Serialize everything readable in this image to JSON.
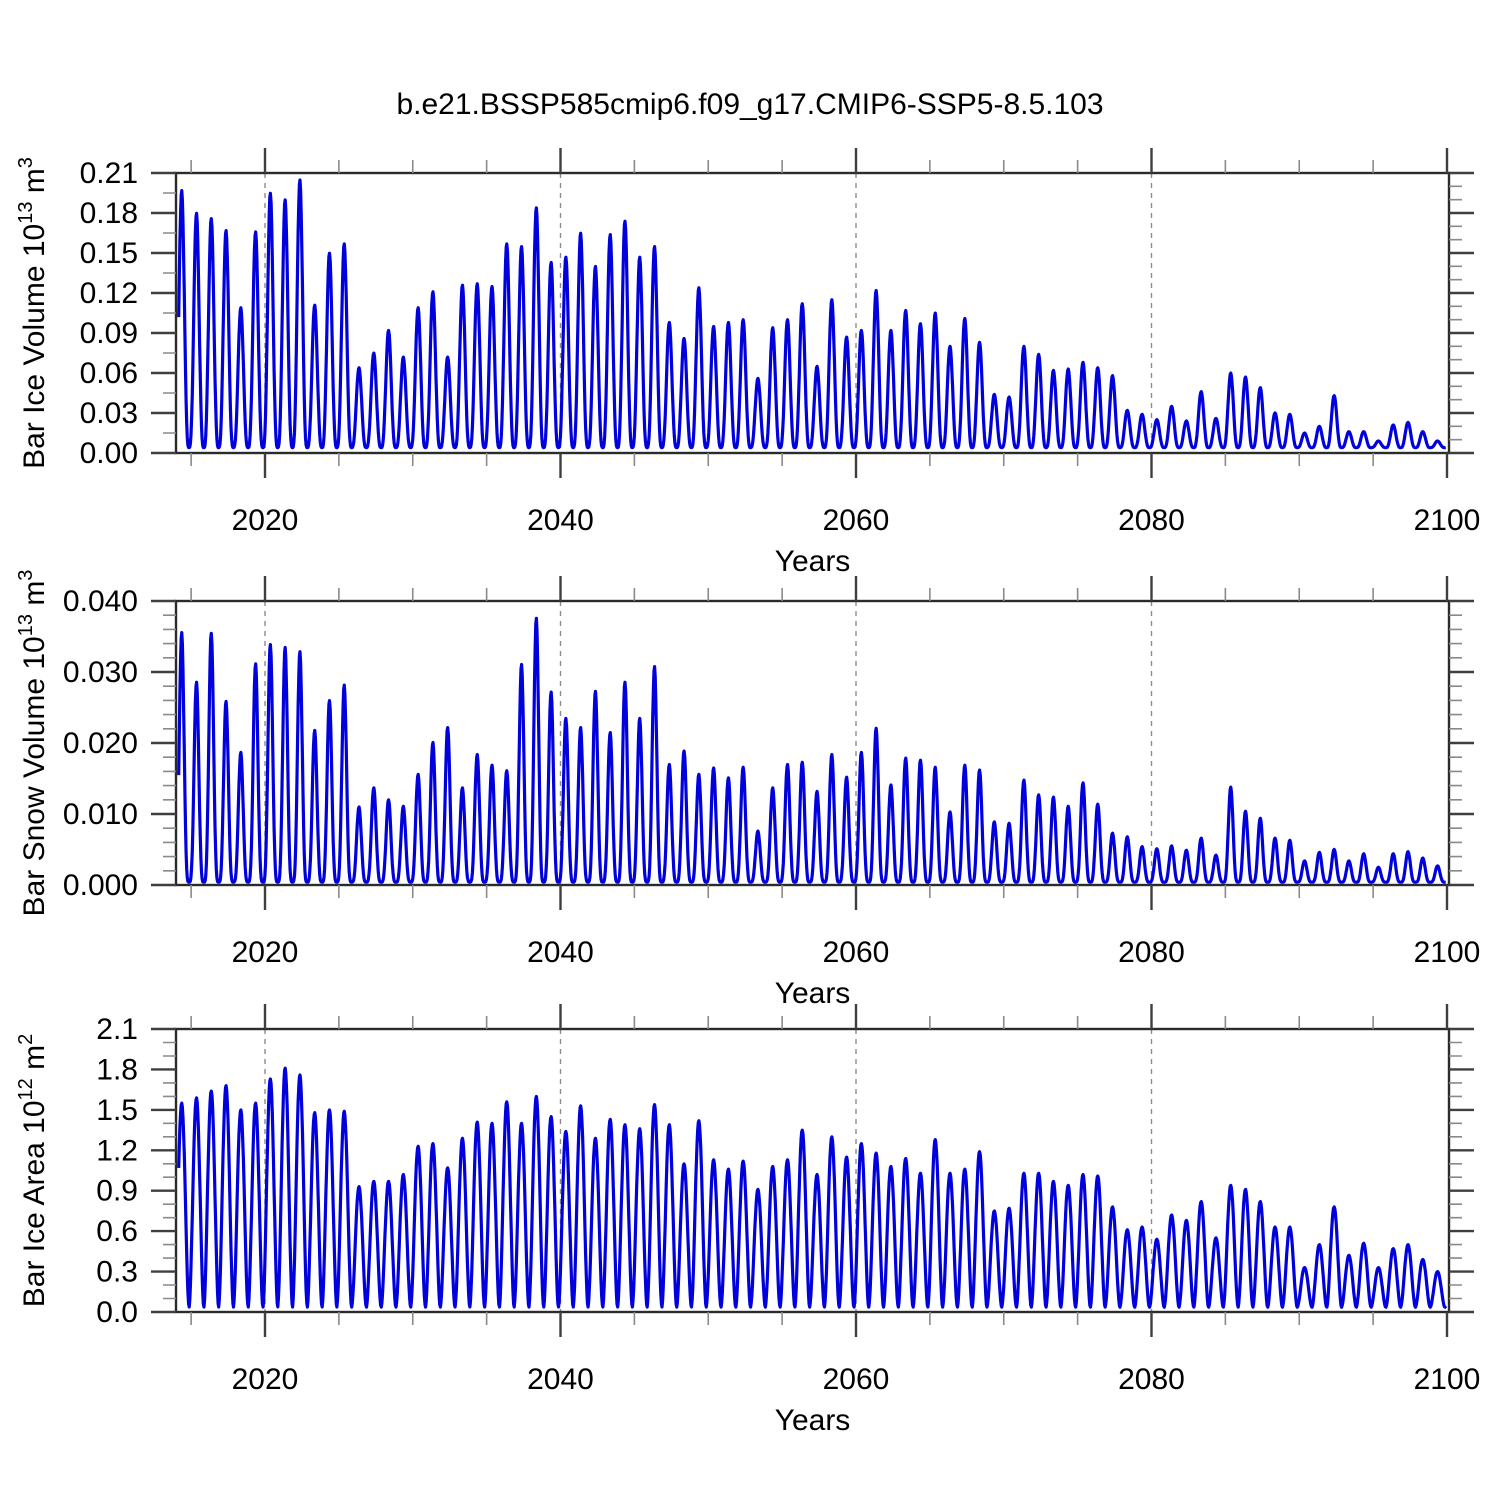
{
  "title": "b.e21.BSSP585cmip6.f09_g17.CMIP6-SSP5-8.5.103",
  "colors": {
    "series": "#0101dd",
    "frame": "#2b2b2b",
    "major_tick": "#3f3f3f",
    "minor_tick": "#8a8a8a",
    "gridline": "#8c8c8c",
    "text": "#000000"
  },
  "chart_data": [
    {
      "type": "line",
      "panel": "bar_ice_volume",
      "ylabel": "Bar Ice Volume 10^13 m^3",
      "ylabel_parts": {
        "prefix": "Bar Ice Volume 10",
        "sup1": "13",
        "mid": " m",
        "sup2": "3"
      },
      "xlabel": "Years",
      "xlim": [
        2014,
        2100.15
      ],
      "ylim": [
        0,
        0.21
      ],
      "ytick_labels": [
        "0.00",
        "0.03",
        "0.06",
        "0.09",
        "0.12",
        "0.15",
        "0.18",
        "0.21"
      ],
      "xtick_labels": [
        "2020",
        "2040",
        "2060",
        "2080",
        "2100"
      ],
      "xticks": [
        2020,
        2040,
        2060,
        2080,
        2100
      ],
      "grid_years": [
        2020,
        2040,
        2060,
        2080
      ],
      "seasonal_cycle": {
        "years": [
          2014,
          2015,
          2016,
          2017,
          2018,
          2019,
          2020,
          2021,
          2022,
          2023,
          2024,
          2025,
          2026,
          2027,
          2028,
          2029,
          2030,
          2031,
          2032,
          2033,
          2034,
          2035,
          2036,
          2037,
          2038,
          2039,
          2040,
          2041,
          2042,
          2043,
          2044,
          2045,
          2046,
          2047,
          2048,
          2049,
          2050,
          2051,
          2052,
          2053,
          2054,
          2055,
          2056,
          2057,
          2058,
          2059,
          2060,
          2061,
          2062,
          2063,
          2064,
          2065,
          2066,
          2067,
          2068,
          2069,
          2070,
          2071,
          2072,
          2073,
          2074,
          2075,
          2076,
          2077,
          2078,
          2079,
          2080,
          2081,
          2082,
          2083,
          2084,
          2085,
          2086,
          2087,
          2088,
          2089,
          2090,
          2091,
          2092,
          2093,
          2094,
          2095,
          2096,
          2097,
          2098,
          2099
        ],
        "annual_max": [
          0.197,
          0.18,
          0.176,
          0.167,
          0.109,
          0.166,
          0.195,
          0.19,
          0.205,
          0.111,
          0.15,
          0.157,
          0.064,
          0.075,
          0.092,
          0.072,
          0.109,
          0.121,
          0.072,
          0.126,
          0.127,
          0.125,
          0.157,
          0.155,
          0.184,
          0.143,
          0.147,
          0.165,
          0.14,
          0.164,
          0.174,
          0.147,
          0.155,
          0.098,
          0.086,
          0.124,
          0.095,
          0.098,
          0.1,
          0.056,
          0.094,
          0.1,
          0.112,
          0.065,
          0.115,
          0.087,
          0.092,
          0.122,
          0.092,
          0.107,
          0.097,
          0.105,
          0.08,
          0.101,
          0.083,
          0.044,
          0.042,
          0.08,
          0.074,
          0.062,
          0.063,
          0.068,
          0.064,
          0.058,
          0.032,
          0.029,
          0.025,
          0.035,
          0.024,
          0.046,
          0.026,
          0.06,
          0.057,
          0.049,
          0.03,
          0.029,
          0.015,
          0.02,
          0.043,
          0.016,
          0.016,
          0.009,
          0.021,
          0.023,
          0.016,
          0.009
        ],
        "annual_min": 0.004
      }
    },
    {
      "type": "line",
      "panel": "bar_snow_volume",
      "ylabel": "Bar Snow Volume 10^13 m^3",
      "ylabel_parts": {
        "prefix": "Bar Snow Volume 10",
        "sup1": "13",
        "mid": " m",
        "sup2": "3"
      },
      "xlabel": "Years",
      "xlim": [
        2014,
        2100.15
      ],
      "ylim": [
        0,
        0.04
      ],
      "ytick_labels": [
        "0.000",
        "0.010",
        "0.020",
        "0.030",
        "0.040"
      ],
      "xtick_labels": [
        "2020",
        "2040",
        "2060",
        "2080",
        "2100"
      ],
      "xticks": [
        2020,
        2040,
        2060,
        2080,
        2100
      ],
      "grid_years": [
        2020,
        2040,
        2060,
        2080
      ],
      "seasonal_cycle": {
        "years": [
          2014,
          2015,
          2016,
          2017,
          2018,
          2019,
          2020,
          2021,
          2022,
          2023,
          2024,
          2025,
          2026,
          2027,
          2028,
          2029,
          2030,
          2031,
          2032,
          2033,
          2034,
          2035,
          2036,
          2037,
          2038,
          2039,
          2040,
          2041,
          2042,
          2043,
          2044,
          2045,
          2046,
          2047,
          2048,
          2049,
          2050,
          2051,
          2052,
          2053,
          2054,
          2055,
          2056,
          2057,
          2058,
          2059,
          2060,
          2061,
          2062,
          2063,
          2064,
          2065,
          2066,
          2067,
          2068,
          2069,
          2070,
          2071,
          2072,
          2073,
          2074,
          2075,
          2076,
          2077,
          2078,
          2079,
          2080,
          2081,
          2082,
          2083,
          2084,
          2085,
          2086,
          2087,
          2088,
          2089,
          2090,
          2091,
          2092,
          2093,
          2094,
          2095,
          2096,
          2097,
          2098,
          2099
        ],
        "annual_max": [
          0.0356,
          0.0286,
          0.0355,
          0.0259,
          0.0187,
          0.0312,
          0.0339,
          0.0335,
          0.0329,
          0.0218,
          0.026,
          0.0282,
          0.011,
          0.0137,
          0.012,
          0.0111,
          0.0156,
          0.0201,
          0.0222,
          0.0137,
          0.0184,
          0.0169,
          0.0161,
          0.0311,
          0.0376,
          0.0272,
          0.0235,
          0.0222,
          0.0273,
          0.0215,
          0.0286,
          0.0235,
          0.0308,
          0.017,
          0.0189,
          0.0156,
          0.0165,
          0.0151,
          0.0166,
          0.0076,
          0.0137,
          0.017,
          0.0173,
          0.0132,
          0.0184,
          0.0152,
          0.0187,
          0.0221,
          0.0141,
          0.0179,
          0.0176,
          0.0166,
          0.0103,
          0.0169,
          0.0162,
          0.0089,
          0.0087,
          0.0148,
          0.0127,
          0.0124,
          0.0111,
          0.0144,
          0.0114,
          0.0073,
          0.0068,
          0.0054,
          0.0051,
          0.0055,
          0.0049,
          0.0066,
          0.0042,
          0.0138,
          0.0104,
          0.0094,
          0.0066,
          0.0063,
          0.0034,
          0.0046,
          0.005,
          0.0034,
          0.0044,
          0.0025,
          0.0044,
          0.0047,
          0.0038,
          0.0027
        ],
        "annual_min": 0.0004
      }
    },
    {
      "type": "line",
      "panel": "bar_ice_area",
      "ylabel": "Bar Ice Area 10^12 m^2",
      "ylabel_parts": {
        "prefix": "Bar Ice Area 10",
        "sup1": "12",
        "mid": " m",
        "sup2": "2"
      },
      "xlabel": "Years",
      "xlim": [
        2014,
        2100.15
      ],
      "ylim": [
        0,
        2.1
      ],
      "ytick_labels": [
        "0.0",
        "0.3",
        "0.6",
        "0.9",
        "1.2",
        "1.5",
        "1.8",
        "2.1"
      ],
      "xtick_labels": [
        "2020",
        "2040",
        "2060",
        "2080",
        "2100"
      ],
      "xticks": [
        2020,
        2040,
        2060,
        2080,
        2100
      ],
      "grid_years": [
        2020,
        2040,
        2060,
        2080
      ],
      "seasonal_cycle": {
        "years": [
          2014,
          2015,
          2016,
          2017,
          2018,
          2019,
          2020,
          2021,
          2022,
          2023,
          2024,
          2025,
          2026,
          2027,
          2028,
          2029,
          2030,
          2031,
          2032,
          2033,
          2034,
          2035,
          2036,
          2037,
          2038,
          2039,
          2040,
          2041,
          2042,
          2043,
          2044,
          2045,
          2046,
          2047,
          2048,
          2049,
          2050,
          2051,
          2052,
          2053,
          2054,
          2055,
          2056,
          2057,
          2058,
          2059,
          2060,
          2061,
          2062,
          2063,
          2064,
          2065,
          2066,
          2067,
          2068,
          2069,
          2070,
          2071,
          2072,
          2073,
          2074,
          2075,
          2076,
          2077,
          2078,
          2079,
          2080,
          2081,
          2082,
          2083,
          2084,
          2085,
          2086,
          2087,
          2088,
          2089,
          2090,
          2091,
          2092,
          2093,
          2094,
          2095,
          2096,
          2097,
          2098,
          2099
        ],
        "annual_max": [
          1.55,
          1.59,
          1.64,
          1.68,
          1.5,
          1.55,
          1.73,
          1.81,
          1.76,
          1.48,
          1.5,
          1.49,
          0.93,
          0.97,
          0.97,
          1.02,
          1.23,
          1.25,
          1.07,
          1.29,
          1.41,
          1.4,
          1.56,
          1.4,
          1.6,
          1.45,
          1.34,
          1.53,
          1.29,
          1.43,
          1.39,
          1.36,
          1.54,
          1.39,
          1.1,
          1.42,
          1.13,
          1.06,
          1.12,
          0.91,
          1.08,
          1.13,
          1.35,
          1.02,
          1.3,
          1.15,
          1.25,
          1.18,
          1.08,
          1.14,
          1.03,
          1.28,
          1.03,
          1.06,
          1.19,
          0.75,
          0.77,
          1.03,
          1.03,
          0.97,
          0.94,
          1.02,
          1.01,
          0.78,
          0.61,
          0.63,
          0.54,
          0.72,
          0.68,
          0.82,
          0.55,
          0.94,
          0.91,
          0.82,
          0.63,
          0.63,
          0.33,
          0.5,
          0.78,
          0.42,
          0.51,
          0.33,
          0.47,
          0.5,
          0.39,
          0.3
        ],
        "annual_min": 0.035
      }
    }
  ]
}
